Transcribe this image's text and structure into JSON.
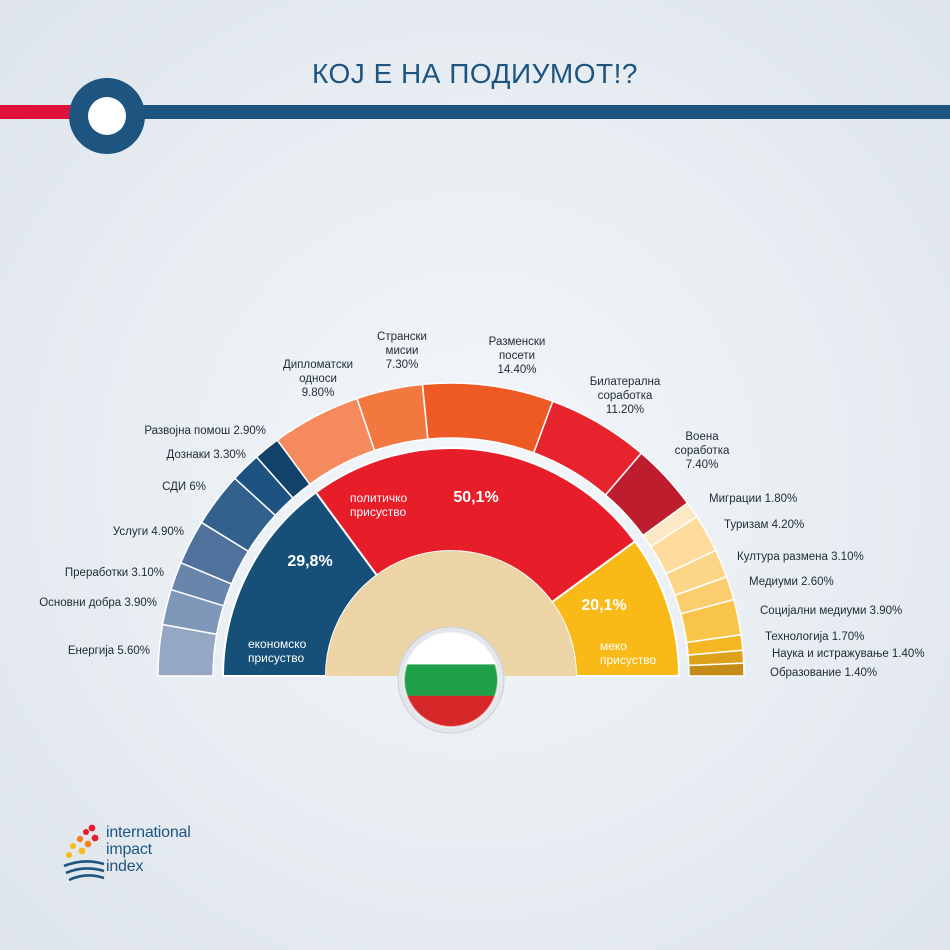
{
  "title": "КОЈ Е НА ПОДИУМОТ!?",
  "logo": {
    "lines": [
      "international",
      "impact",
      "index"
    ]
  },
  "colors": {
    "header_line": "#1e5580",
    "header_accent": "#e0103a",
    "background": "#e6ecf1"
  },
  "chart_data": {
    "type": "pie",
    "layout": "half-donut, two rings",
    "groups": [
      {
        "name_lines": [
          "економско",
          "присуство"
        ],
        "value": 29.8,
        "label": "29,8%",
        "color": "#164f78"
      },
      {
        "name_lines": [
          "политичко",
          "присуство"
        ],
        "value": 50.1,
        "label": "50,1%",
        "color": "#e71d2a"
      },
      {
        "name_lines": [
          "меко",
          "присуство"
        ],
        "value": 20.1,
        "label": "20,1%",
        "color": "#f9b916"
      }
    ],
    "economic_items": [
      {
        "label": "Енергија 5.60%",
        "value": 5.6,
        "color": "#94a8c3"
      },
      {
        "label": "Основни добра 3.90%",
        "value": 3.9,
        "color": "#7f98b9"
      },
      {
        "label": "Преработки 3.10%",
        "value": 3.1,
        "color": "#6885ab"
      },
      {
        "label": "Услуги 4.90%",
        "value": 4.9,
        "color": "#4f719c"
      },
      {
        "label": "СДИ 6%",
        "value": 6.0,
        "color": "#33618d"
      },
      {
        "label": "Дознаки 3.30%",
        "value": 3.3,
        "color": "#1e5280"
      },
      {
        "label": "Развојна помош 2.90%",
        "value": 2.9,
        "color": "#12426a"
      }
    ],
    "political_items": [
      {
        "label_lines": [
          "Дипломатски",
          "односи",
          "9.80%"
        ],
        "value": 9.8,
        "color": "#f48a5d"
      },
      {
        "label_lines": [
          "Странски",
          "мисии",
          "7.30%"
        ],
        "value": 7.3,
        "color": "#f27840"
      },
      {
        "label_lines": [
          "Разменски",
          "посети",
          "14.40%"
        ],
        "value": 14.4,
        "color": "#ee5a24"
      },
      {
        "label_lines": [
          "Билатерална",
          "соработка",
          "11.20%"
        ],
        "value": 11.2,
        "color": "#e7232d"
      },
      {
        "label_lines": [
          "Воена",
          "соработка",
          "7.40%"
        ],
        "value": 7.4,
        "color": "#bd1d2d"
      }
    ],
    "soft_items": [
      {
        "label": "Миграции 1.80%",
        "value": 1.8,
        "color": "#fde8c6"
      },
      {
        "label": "Туризам 4.20%",
        "value": 4.2,
        "color": "#fedc9e"
      },
      {
        "label": "Култура размена 3.10%",
        "value": 3.1,
        "color": "#fdd586"
      },
      {
        "label": "Медиуми 2.60%",
        "value": 2.6,
        "color": "#fccd6f"
      },
      {
        "label": "Социјални медиуми 3.90%",
        "value": 3.9,
        "color": "#f9c548"
      },
      {
        "label": "Технологија 1.70%",
        "value": 1.7,
        "color": "#f4b722"
      },
      {
        "label": "Наука и истражување 1.40%",
        "value": 1.4,
        "color": "#dea21a"
      },
      {
        "label": "Образование 1.40%",
        "value": 1.4,
        "color": "#c28c16"
      }
    ],
    "center_flag": [
      "#ffffff",
      "#21a04a",
      "#d62828"
    ]
  }
}
